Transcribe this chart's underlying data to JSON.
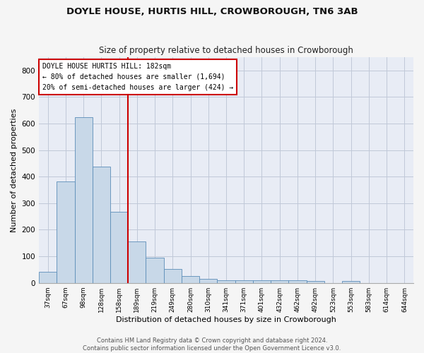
{
  "title": "DOYLE HOUSE, HURTIS HILL, CROWBOROUGH, TN6 3AB",
  "subtitle": "Size of property relative to detached houses in Crowborough",
  "xlabel": "Distribution of detached houses by size in Crowborough",
  "ylabel": "Number of detached properties",
  "categories": [
    "37sqm",
    "67sqm",
    "98sqm",
    "128sqm",
    "158sqm",
    "189sqm",
    "219sqm",
    "249sqm",
    "280sqm",
    "310sqm",
    "341sqm",
    "371sqm",
    "401sqm",
    "432sqm",
    "462sqm",
    "492sqm",
    "523sqm",
    "553sqm",
    "583sqm",
    "614sqm",
    "644sqm"
  ],
  "values": [
    43,
    383,
    625,
    438,
    268,
    155,
    95,
    52,
    27,
    15,
    10,
    10,
    10,
    10,
    10,
    8,
    0,
    8,
    0,
    0,
    0
  ],
  "bar_color": "#c8d8e8",
  "bar_edge_color": "#5b8db8",
  "reference_line_color": "#cc0000",
  "annotation_text": "DOYLE HOUSE HURTIS HILL: 182sqm\n← 80% of detached houses are smaller (1,694)\n20% of semi-detached houses are larger (424) →",
  "annotation_box_color": "#ffffff",
  "annotation_box_edge_color": "#cc0000",
  "ylim": [
    0,
    850
  ],
  "yticks": [
    0,
    100,
    200,
    300,
    400,
    500,
    600,
    700,
    800
  ],
  "grid_color": "#c0c8d8",
  "background_color": "#e8ecf5",
  "fig_background": "#f5f5f5",
  "footer": "Contains HM Land Registry data © Crown copyright and database right 2024.\nContains public sector information licensed under the Open Government Licence v3.0.",
  "figsize": [
    6.0,
    5.0
  ],
  "dpi": 100
}
